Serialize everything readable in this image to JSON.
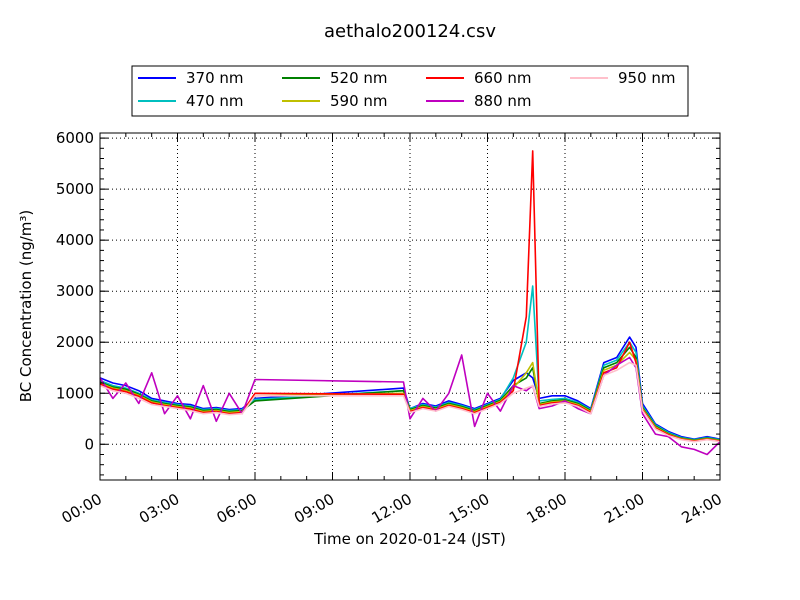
{
  "chart_data": {
    "type": "line",
    "title": "aethalo200124.csv",
    "xlabel": "Time on 2020-01-24 (JST)",
    "ylabel": "BC Concentration (ng/m³)",
    "x_unit": "time of day (HH:MM)",
    "xlim": [
      "00:00",
      "24:00"
    ],
    "ylim": [
      -700,
      6100
    ],
    "x_ticks": [
      "00:00",
      "03:00",
      "06:00",
      "09:00",
      "12:00",
      "15:00",
      "18:00",
      "21:00",
      "24:00"
    ],
    "y_ticks": [
      0,
      1000,
      2000,
      3000,
      4000,
      5000,
      6000
    ],
    "grid": true,
    "legend_position": "top-center",
    "colors": {
      "370 nm": "#0000ff",
      "470 nm": "#00bfbf",
      "520 nm": "#008000",
      "590 nm": "#bfbf00",
      "660 nm": "#ff0000",
      "880 nm": "#bf00bf",
      "950 nm": "#ffc0cb"
    },
    "x": [
      "00:00",
      "00:30",
      "01:00",
      "01:30",
      "02:00",
      "02:30",
      "03:00",
      "03:30",
      "04:00",
      "04:30",
      "05:00",
      "05:30",
      "06:00",
      "11:45",
      "12:00",
      "12:30",
      "13:00",
      "13:30",
      "14:00",
      "14:30",
      "15:00",
      "15:30",
      "16:00",
      "16:30",
      "16:45",
      "17:00",
      "17:30",
      "18:00",
      "18:30",
      "19:00",
      "19:30",
      "20:00",
      "20:30",
      "20:45",
      "21:00",
      "21:30",
      "22:00",
      "22:30",
      "23:00",
      "23:30",
      "24:00"
    ],
    "series": [
      {
        "name": "370 nm",
        "values": [
          1300,
          1200,
          1150,
          1050,
          900,
          850,
          800,
          780,
          700,
          720,
          680,
          700,
          900,
          1100,
          700,
          800,
          750,
          850,
          780,
          700,
          800,
          900,
          1250,
          1400,
          1300,
          900,
          950,
          950,
          850,
          700,
          1600,
          1700,
          2100,
          1900,
          800,
          400,
          250,
          150,
          100,
          150,
          100
        ]
      },
      {
        "name": "470 nm",
        "values": [
          1250,
          1150,
          1100,
          1000,
          870,
          820,
          780,
          750,
          680,
          700,
          660,
          680,
          880,
          1050,
          700,
          780,
          730,
          820,
          760,
          680,
          780,
          880,
          1300,
          2000,
          3100,
          850,
          880,
          900,
          820,
          680,
          1550,
          1650,
          2000,
          1800,
          750,
          380,
          230,
          130,
          90,
          130,
          90
        ]
      },
      {
        "name": "520 nm",
        "values": [
          1220,
          1120,
          1080,
          980,
          850,
          800,
          760,
          730,
          660,
          680,
          640,
          660,
          850,
          1050,
          680,
          760,
          710,
          800,
          740,
          660,
          760,
          860,
          1150,
          1300,
          1500,
          800,
          850,
          870,
          800,
          660,
          1500,
          1600,
          1900,
          1700,
          720,
          360,
          210,
          120,
          80,
          120,
          80
        ]
      },
      {
        "name": "590 nm",
        "values": [
          1200,
          1100,
          1050,
          960,
          830,
          780,
          740,
          710,
          640,
          660,
          620,
          640,
          950,
          1000,
          660,
          740,
          690,
          780,
          720,
          640,
          740,
          840,
          1100,
          1400,
          1600,
          780,
          830,
          850,
          780,
          640,
          1450,
          1550,
          1800,
          1650,
          700,
          340,
          200,
          110,
          70,
          110,
          70
        ]
      },
      {
        "name": "660 nm",
        "values": [
          1180,
          1080,
          1030,
          940,
          810,
          760,
          720,
          690,
          620,
          640,
          600,
          620,
          1000,
          980,
          640,
          720,
          670,
          760,
          700,
          620,
          720,
          820,
          1050,
          2500,
          5750,
          760,
          810,
          830,
          760,
          620,
          1400,
          1500,
          2000,
          1600,
          680,
          320,
          190,
          100,
          60,
          100,
          60
        ]
      },
      {
        "name": "880 nm",
        "values": [
          1300,
          900,
          1200,
          800,
          1400,
          600,
          950,
          500,
          1150,
          450,
          1000,
          600,
          1270,
          1220,
          500,
          900,
          650,
          1000,
          1750,
          350,
          1000,
          650,
          1150,
          1050,
          1150,
          700,
          750,
          850,
          700,
          600,
          1350,
          1550,
          1700,
          1500,
          600,
          200,
          150,
          -50,
          -100,
          -200,
          50
        ]
      },
      {
        "name": "950 nm",
        "values": [
          1150,
          1050,
          1000,
          900,
          780,
          740,
          700,
          660,
          600,
          620,
          580,
          600,
          950,
          950,
          620,
          700,
          650,
          740,
          680,
          600,
          700,
          800,
          1000,
          1100,
          1150,
          740,
          790,
          810,
          740,
          600,
          1350,
          1450,
          1600,
          1550,
          660,
          300,
          170,
          90,
          50,
          90,
          50
        ]
      }
    ]
  }
}
